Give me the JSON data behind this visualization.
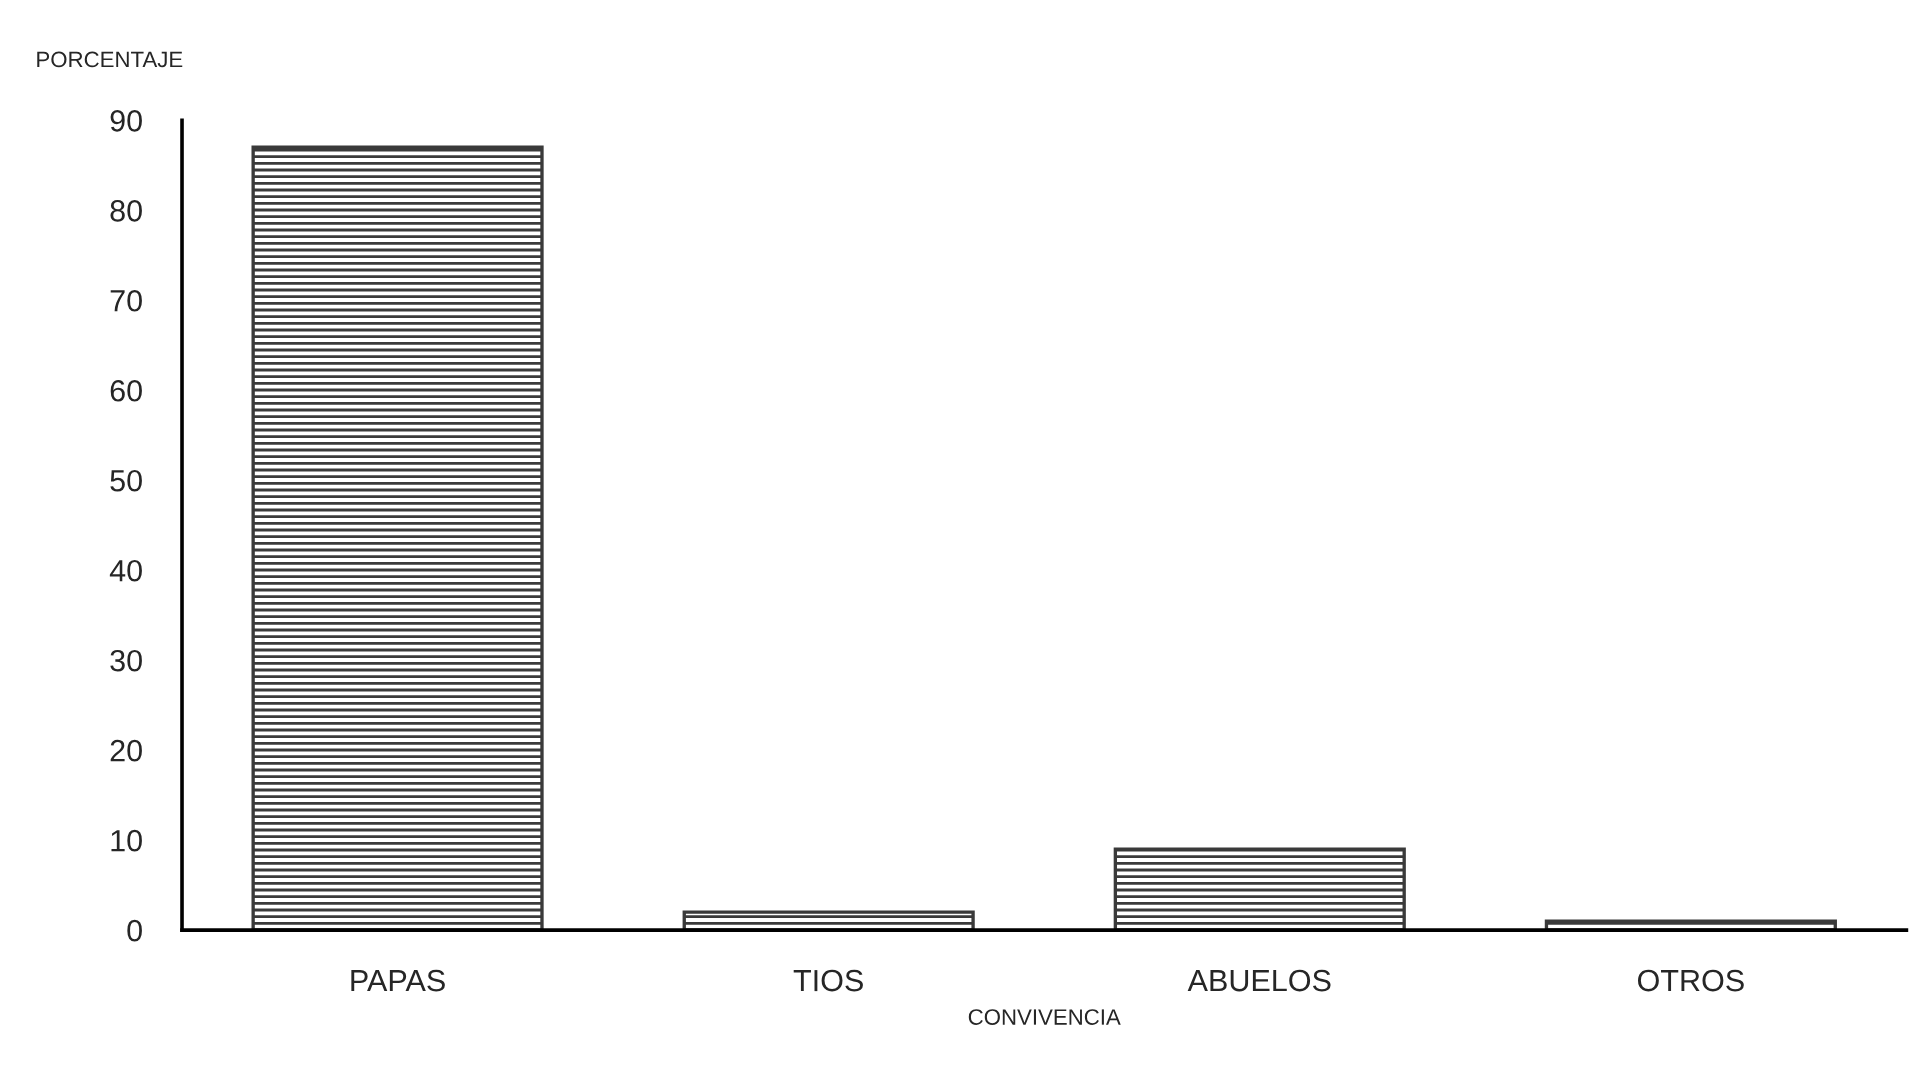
{
  "chart_data": {
    "type": "bar",
    "xlabel": "CONVIVENCIA",
    "ylabel": "PORCENTAJE",
    "categories": [
      "PAPAS",
      "TIOS",
      "ABUELOS",
      "OTROS"
    ],
    "values": [
      87,
      2,
      9,
      1
    ],
    "color": "#3a3a3a",
    "ylim": [
      0,
      90
    ],
    "yticks": [
      0,
      10,
      20,
      30,
      40,
      50,
      60,
      70,
      80,
      90
    ],
    "grid": false,
    "legend": false
  }
}
